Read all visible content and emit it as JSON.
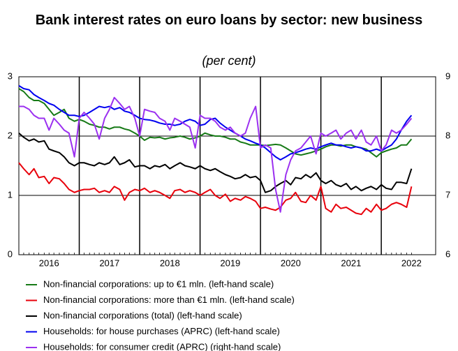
{
  "chart_data": {
    "type": "line",
    "title": "Bank interest rates on euro loans by sector: new business",
    "subtitle": "(per cent)",
    "x": [
      2015.5,
      2015.58,
      2015.67,
      2015.75,
      2015.83,
      2015.92,
      2016,
      2016.08,
      2016.17,
      2016.25,
      2016.33,
      2016.42,
      2016.5,
      2016.58,
      2016.67,
      2016.75,
      2016.83,
      2016.92,
      2017,
      2017.08,
      2017.17,
      2017.25,
      2017.33,
      2017.42,
      2017.5,
      2017.58,
      2017.67,
      2017.75,
      2017.83,
      2017.92,
      2018,
      2018.08,
      2018.17,
      2018.25,
      2018.33,
      2018.42,
      2018.5,
      2018.58,
      2018.67,
      2018.75,
      2018.83,
      2018.92,
      2019,
      2019.08,
      2019.17,
      2019.25,
      2019.33,
      2019.42,
      2019.5,
      2019.58,
      2019.67,
      2019.75,
      2019.83,
      2019.92,
      2020,
      2020.08,
      2020.17,
      2020.25,
      2020.33,
      2020.42,
      2020.5,
      2020.58,
      2020.67,
      2020.75,
      2020.83,
      2020.92,
      2021,
      2021.08,
      2021.17,
      2021.25,
      2021.33,
      2021.42,
      2021.5,
      2021.58,
      2021.67,
      2021.75,
      2021.83,
      2021.92,
      2022
    ],
    "series": [
      {
        "name": "Non-financial corporations: up to €1 mln. (left-hand scale)",
        "color": "#177a17",
        "values": [
          2.8,
          2.75,
          2.65,
          2.6,
          2.6,
          2.55,
          2.45,
          2.35,
          2.4,
          2.45,
          2.3,
          2.25,
          2.28,
          2.25,
          2.2,
          2.18,
          2.15,
          2.15,
          2.12,
          2.15,
          2.15,
          2.12,
          2.1,
          2.05,
          2.0,
          1.93,
          1.98,
          1.97,
          1.98,
          1.95,
          1.97,
          1.98,
          2.0,
          1.98,
          1.95,
          1.97,
          2.0,
          2.05,
          2.02,
          2.0,
          2.0,
          1.98,
          1.95,
          1.95,
          1.9,
          1.88,
          1.85,
          1.85,
          1.85,
          1.84,
          1.85,
          1.86,
          1.85,
          1.8,
          1.75,
          1.7,
          1.68,
          1.7,
          1.72,
          1.75,
          1.78,
          1.82,
          1.85,
          1.85,
          1.83,
          1.85,
          1.85,
          1.82,
          1.8,
          1.78,
          1.72,
          1.65,
          1.72,
          1.75,
          1.78,
          1.8,
          1.85,
          1.85,
          1.95
        ]
      },
      {
        "name": "Non-financial corporations: more than €1 mln. (left-hand scale)",
        "color": "#e8000b",
        "values": [
          1.55,
          1.45,
          1.35,
          1.45,
          1.3,
          1.32,
          1.2,
          1.3,
          1.28,
          1.2,
          1.1,
          1.05,
          1.08,
          1.1,
          1.1,
          1.12,
          1.05,
          1.08,
          1.05,
          1.15,
          1.1,
          0.92,
          1.05,
          1.1,
          1.08,
          1.12,
          1.05,
          1.08,
          1.05,
          1.0,
          0.95,
          1.08,
          1.1,
          1.05,
          1.08,
          1.05,
          1.0,
          1.05,
          1.1,
          1.0,
          0.95,
          1.02,
          0.9,
          0.95,
          0.92,
          0.98,
          0.95,
          0.9,
          0.78,
          0.8,
          0.77,
          0.75,
          0.8,
          0.92,
          0.95,
          1.05,
          0.9,
          0.88,
          1.0,
          0.92,
          1.15,
          0.78,
          0.72,
          0.85,
          0.78,
          0.8,
          0.75,
          0.7,
          0.68,
          0.78,
          0.72,
          0.85,
          0.75,
          0.78,
          0.85,
          0.88,
          0.85,
          0.8,
          1.15
        ]
      },
      {
        "name": "Non-financial corporations (total) (left-hand scale)",
        "color": "#000000",
        "values": [
          2.05,
          1.98,
          1.92,
          1.95,
          1.9,
          1.92,
          1.78,
          1.75,
          1.72,
          1.65,
          1.55,
          1.5,
          1.55,
          1.55,
          1.52,
          1.5,
          1.55,
          1.52,
          1.55,
          1.65,
          1.52,
          1.55,
          1.6,
          1.48,
          1.5,
          1.5,
          1.45,
          1.5,
          1.48,
          1.52,
          1.45,
          1.5,
          1.55,
          1.5,
          1.48,
          1.45,
          1.5,
          1.45,
          1.42,
          1.45,
          1.4,
          1.35,
          1.32,
          1.28,
          1.3,
          1.35,
          1.3,
          1.32,
          1.25,
          1.05,
          1.08,
          1.15,
          1.2,
          1.25,
          1.18,
          1.3,
          1.28,
          1.35,
          1.3,
          1.38,
          1.25,
          1.2,
          1.25,
          1.18,
          1.15,
          1.2,
          1.1,
          1.15,
          1.08,
          1.12,
          1.15,
          1.1,
          1.18,
          1.12,
          1.1,
          1.22,
          1.22,
          1.2,
          1.45
        ]
      },
      {
        "name": "Households: for house purchases (APRC) (left-hand scale)",
        "color": "#0000f0",
        "values": [
          2.85,
          2.8,
          2.78,
          2.7,
          2.65,
          2.6,
          2.55,
          2.52,
          2.45,
          2.4,
          2.35,
          2.35,
          2.33,
          2.35,
          2.4,
          2.45,
          2.5,
          2.48,
          2.5,
          2.45,
          2.48,
          2.42,
          2.4,
          2.35,
          2.3,
          2.28,
          2.27,
          2.25,
          2.22,
          2.2,
          2.2,
          2.18,
          2.2,
          2.25,
          2.28,
          2.25,
          2.18,
          2.2,
          2.28,
          2.3,
          2.22,
          2.15,
          2.1,
          2.05,
          2.0,
          1.95,
          1.92,
          1.88,
          1.85,
          1.8,
          1.72,
          1.65,
          1.6,
          1.65,
          1.7,
          1.72,
          1.75,
          1.78,
          1.8,
          1.78,
          1.82,
          1.85,
          1.88,
          1.85,
          1.85,
          1.82,
          1.8,
          1.82,
          1.8,
          1.75,
          1.75,
          1.78,
          1.75,
          1.8,
          1.85,
          1.95,
          2.1,
          2.25,
          2.35
        ]
      },
      {
        "name": "Households: for consumer credit (APRC) (right-hand scale)",
        "color": "#9b30f0",
        "axis": "y2",
        "values": [
          8.5,
          8.5,
          8.45,
          8.35,
          8.3,
          8.3,
          8.1,
          8.3,
          8.2,
          8.1,
          8.05,
          7.65,
          8.3,
          8.4,
          8.3,
          8.2,
          7.95,
          8.3,
          8.45,
          8.65,
          8.55,
          8.45,
          8.5,
          8.3,
          8.0,
          8.45,
          8.42,
          8.4,
          8.3,
          8.25,
          8.1,
          8.3,
          8.25,
          8.2,
          8.15,
          7.8,
          8.35,
          8.3,
          8.3,
          8.25,
          8.15,
          8.1,
          8.15,
          8.05,
          8.0,
          8.05,
          8.3,
          8.5,
          7.8,
          7.85,
          7.8,
          7.1,
          6.72,
          7.35,
          7.6,
          7.75,
          7.8,
          7.9,
          8.0,
          7.7,
          8.05,
          8.0,
          8.05,
          8.1,
          7.95,
          8.05,
          8.1,
          7.95,
          8.1,
          7.9,
          7.85,
          8.0,
          7.75,
          7.85,
          8.1,
          8.05,
          8.1,
          8.2,
          8.3
        ]
      }
    ],
    "xlim": [
      2015.5,
      2022.4
    ],
    "xticks": [
      2016,
      2017,
      2018,
      2019,
      2020,
      2021,
      2022
    ],
    "vlines": [
      2016.5,
      2017.5,
      2018.5,
      2019.5,
      2020.5,
      2021.5
    ],
    "ylim": [
      0,
      3
    ],
    "yticks": [
      0,
      1,
      2,
      3
    ],
    "y2lim": [
      6,
      9
    ],
    "y2ticks": [
      6,
      7,
      8,
      9
    ],
    "grid": true
  }
}
